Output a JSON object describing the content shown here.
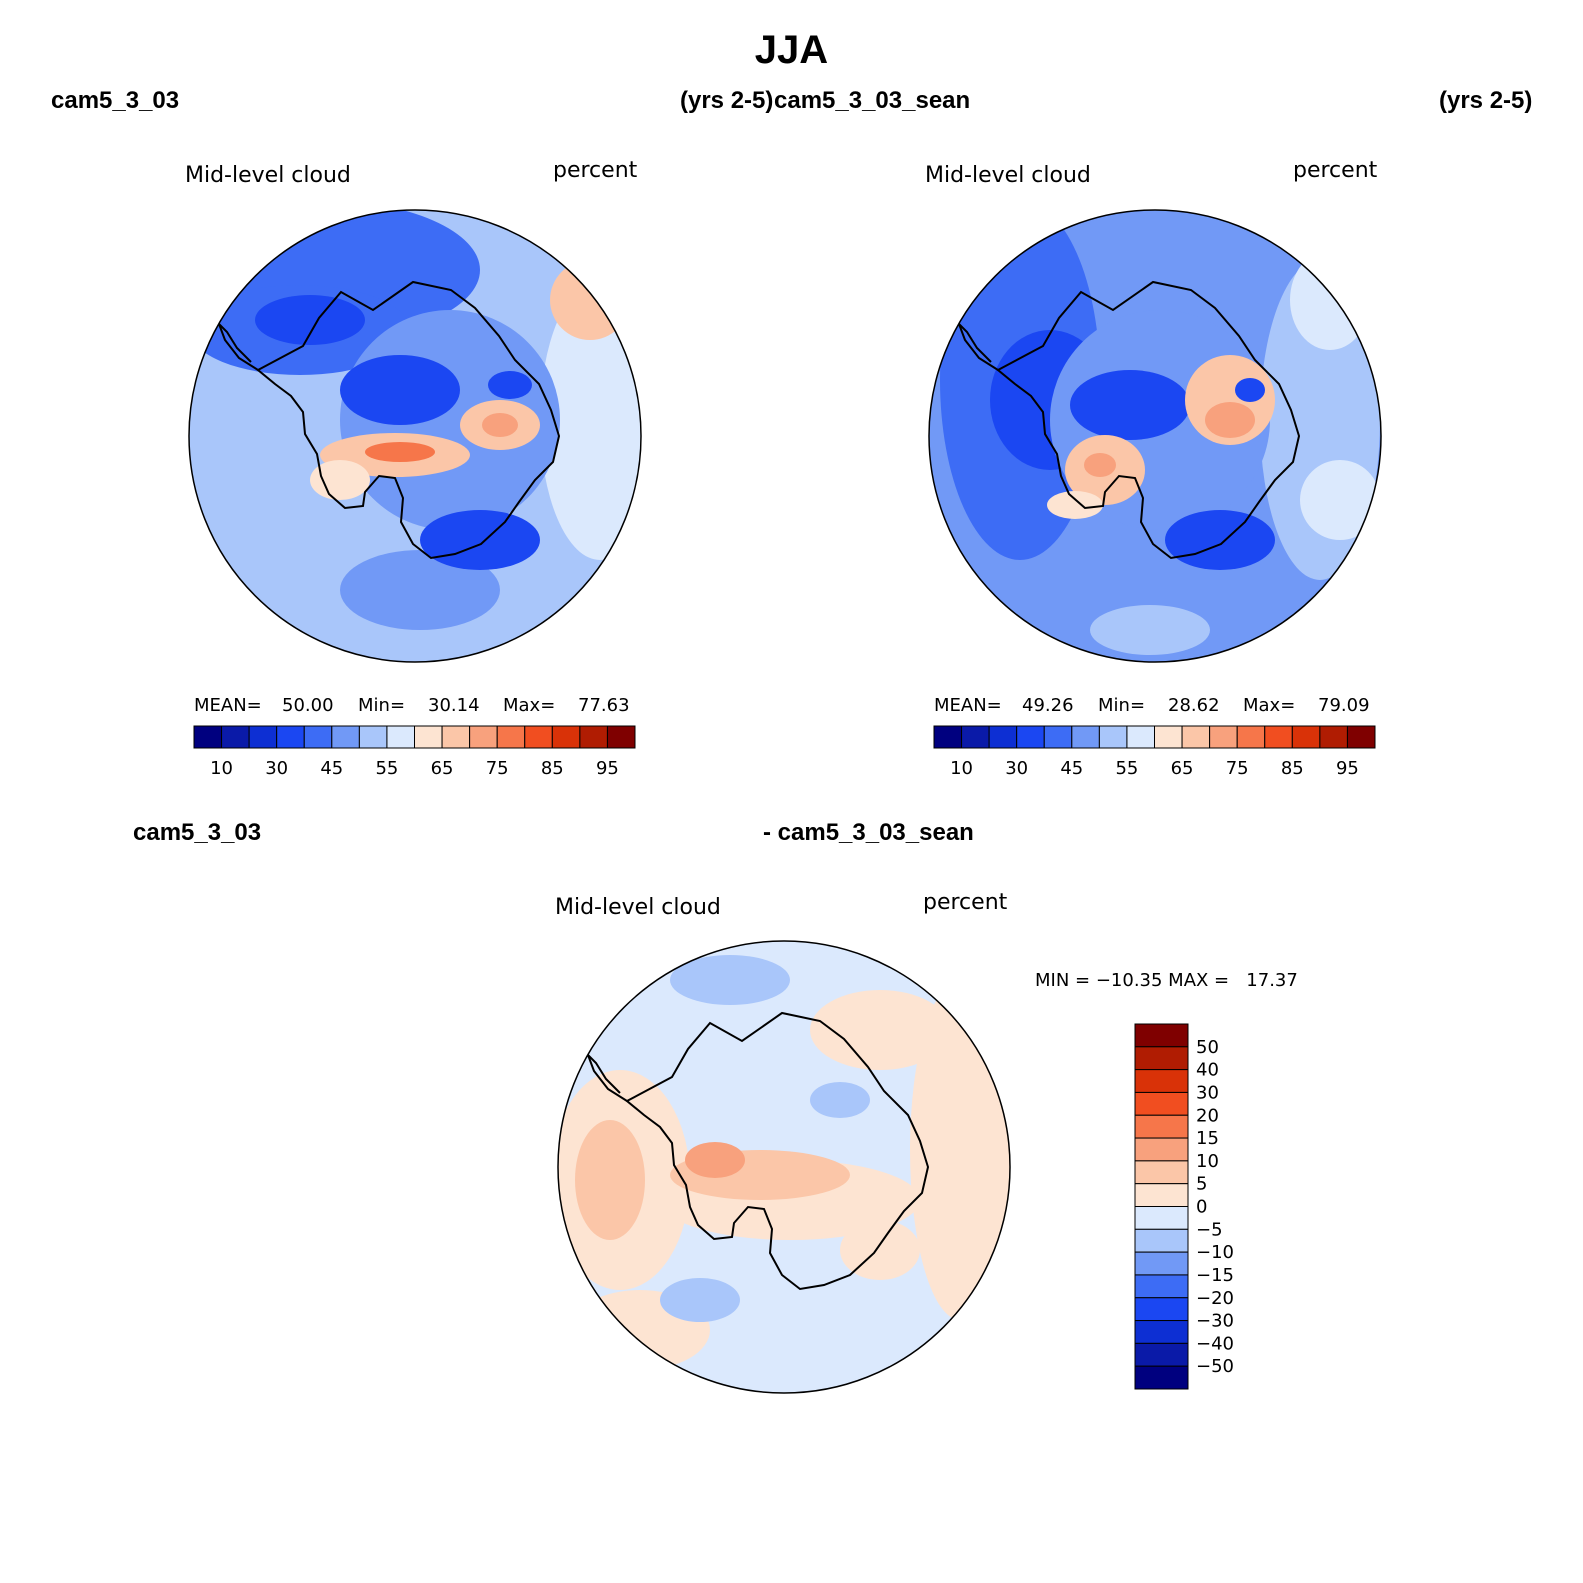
{
  "page": {
    "title": "JJA",
    "top_left_case": "cam5_3_03",
    "top_left_years": "(yrs 2-5)",
    "top_right_case": "cam5_3_03_sean",
    "top_right_years": "(yrs 2-5)",
    "bottom_case_a": "cam5_3_03",
    "bottom_case_b": "- cam5_3_03_sean"
  },
  "colors": {
    "blue_ramp": [
      "#00007f",
      "#0a1aa8",
      "#0d2fd3",
      "#1b47f2",
      "#3d6cf5",
      "#7199f6",
      "#a9c6fa",
      "#dbe9fd"
    ],
    "red_ramp": [
      "#fde4d2",
      "#fbc6a8",
      "#f8a17d",
      "#f6764a",
      "#f14e20",
      "#d93208",
      "#b01c02",
      "#7f0000"
    ]
  },
  "maps": [
    {
      "panel": "top-left",
      "variable": "Mid-level cloud",
      "units": "percent",
      "stats": {
        "mean_label": "MEAN=",
        "mean": "50.00",
        "min_label": "Min=",
        "min": "30.14",
        "max_label": "Max=",
        "max": "77.63"
      }
    },
    {
      "panel": "top-right",
      "variable": "Mid-level cloud",
      "units": "percent",
      "stats": {
        "mean_label": "MEAN=",
        "mean": "49.26",
        "min_label": "Min=",
        "min": "28.62",
        "max_label": "Max=",
        "max": "79.09"
      }
    },
    {
      "panel": "bottom-difference",
      "variable": "Mid-level cloud",
      "units": "percent",
      "stats": {
        "minmax_text": "MIN = −10.35 MAX =   17.37"
      }
    }
  ],
  "abs_colorbar": {
    "tick_labels": [
      "10",
      "30",
      "45",
      "55",
      "65",
      "75",
      "85",
      "95"
    ]
  },
  "diff_colorbar": {
    "tick_labels": [
      "50",
      "40",
      "30",
      "20",
      "15",
      "10",
      "5",
      "0",
      "−5",
      "−10",
      "−15",
      "−20",
      "−30",
      "−40",
      "−50"
    ]
  },
  "chart_data": {
    "type": "heatmap",
    "projection": "south-polar-stereographic",
    "season": "JJA",
    "field": "Mid-level cloud",
    "units": "percent",
    "panels": [
      {
        "case": "cam5_3_03",
        "years": "yrs 2-5",
        "mean": 50.0,
        "min": 30.14,
        "max": 77.63,
        "levels": [
          5,
          10,
          20,
          30,
          40,
          45,
          50,
          55,
          60,
          65,
          70,
          75,
          80,
          85,
          90,
          95
        ]
      },
      {
        "case": "cam5_3_03_sean",
        "years": "yrs 2-5",
        "mean": 49.26,
        "min": 28.62,
        "max": 79.09,
        "levels": [
          5,
          10,
          20,
          30,
          40,
          45,
          50,
          55,
          60,
          65,
          70,
          75,
          80,
          85,
          90,
          95
        ]
      },
      {
        "case": "cam5_3_03 - cam5_3_03_sean",
        "min": -10.35,
        "max": 17.37,
        "levels": [
          -50,
          -40,
          -30,
          -20,
          -15,
          -10,
          -5,
          0,
          5,
          10,
          15,
          20,
          30,
          40,
          50
        ]
      }
    ]
  }
}
